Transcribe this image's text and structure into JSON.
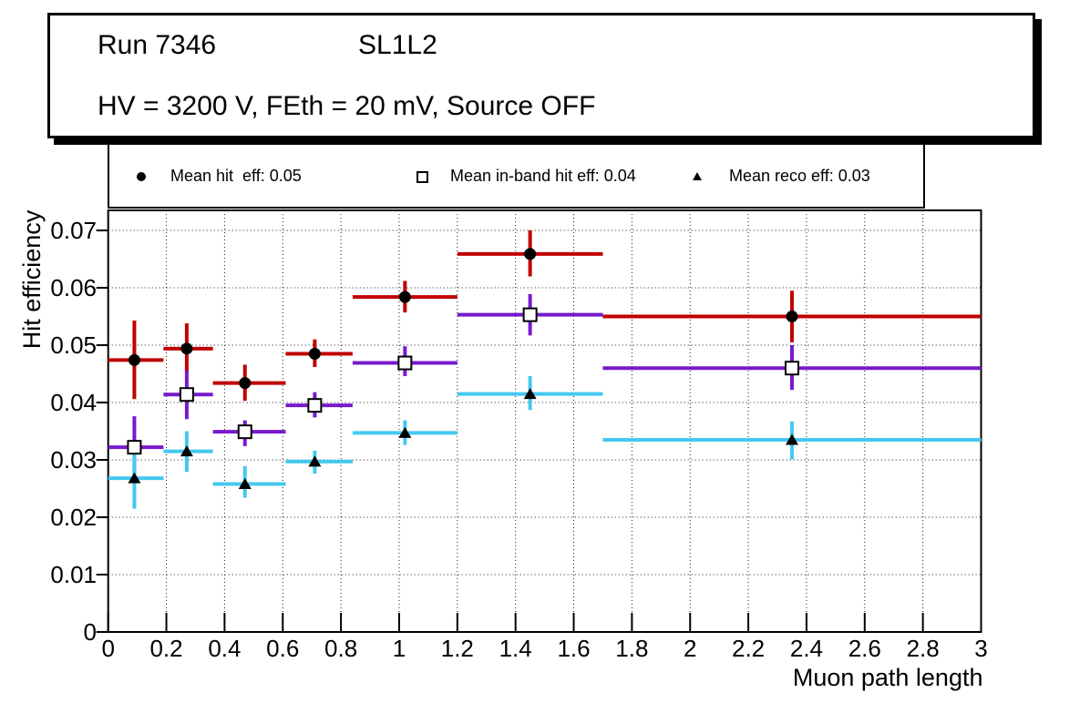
{
  "title": {
    "run": "Run 7346",
    "detector": "SL1L2",
    "conditions": "HV = 3200 V, FEth = 20 mV, Source OFF"
  },
  "colors": {
    "background": "#ffffff",
    "frame": "#000000",
    "grid": "#1a1a1a",
    "marker": "#000000",
    "hit_eff": "#c00000",
    "inband_eff": "#7719cc",
    "reco_eff": "#44c8f0"
  },
  "chart_data": {
    "type": "scatter",
    "subtype": "errorbar-xy",
    "xlabel": "Muon path length",
    "ylabel": "Hit efficiency",
    "xlim": [
      0,
      3
    ],
    "ylim": [
      0,
      0.0735
    ],
    "grid": "dotted-on-major-ticks",
    "legend_position": "top-strip",
    "x_ticks": {
      "values": [
        0,
        0.2,
        0.4,
        0.6,
        0.8,
        1,
        1.2,
        1.4,
        1.6,
        1.8,
        2,
        2.2,
        2.4,
        2.6,
        2.8,
        3
      ],
      "labels": [
        "0",
        "0.2",
        "0.4",
        "0.6",
        "0.8",
        "1",
        "1.2",
        "1.4",
        "1.6",
        "1.8",
        "2",
        "2.2",
        "2.4",
        "2.6",
        "2.8",
        "3"
      ]
    },
    "y_ticks": {
      "values": [
        0,
        0.01,
        0.02,
        0.03,
        0.04,
        0.05,
        0.06,
        0.07
      ],
      "labels": [
        "0",
        "0.01",
        "0.02",
        "0.03",
        "0.04",
        "0.05",
        "0.06",
        "0.07"
      ]
    },
    "bins": {
      "centers": [
        0.09,
        0.27,
        0.47,
        0.71,
        1.02,
        1.45,
        2.35
      ],
      "edges": [
        0.0,
        0.19,
        0.36,
        0.61,
        0.84,
        1.2,
        1.7,
        3.0
      ]
    },
    "series": [
      {
        "name": "Mean hit  eff: 0.05",
        "mean": 0.05,
        "marker": "filled-circle",
        "color_key": "hit_eff",
        "y": [
          0.0474,
          0.0494,
          0.0434,
          0.0485,
          0.0584,
          0.0659,
          0.055
        ],
        "y_low": [
          0.0406,
          0.0453,
          0.0403,
          0.0462,
          0.0557,
          0.062,
          0.0505
        ],
        "y_high": [
          0.0543,
          0.0538,
          0.0466,
          0.051,
          0.0612,
          0.07,
          0.0595
        ]
      },
      {
        "name": "Mean in-band hit eff: 0.04",
        "mean": 0.04,
        "marker": "open-square",
        "color_key": "inband_eff",
        "y": [
          0.0322,
          0.0414,
          0.0349,
          0.0395,
          0.0469,
          0.0553,
          0.046
        ],
        "y_low": [
          0.0265,
          0.0371,
          0.0324,
          0.0374,
          0.0446,
          0.0517,
          0.0422
        ],
        "y_high": [
          0.0376,
          0.0456,
          0.0369,
          0.0418,
          0.0498,
          0.0589,
          0.05
        ]
      },
      {
        "name": "Mean reco eff: 0.03",
        "mean": 0.03,
        "marker": "filled-triangle",
        "color_key": "reco_eff",
        "y": [
          0.0268,
          0.0315,
          0.0258,
          0.0297,
          0.0347,
          0.0415,
          0.0335
        ],
        "y_low": [
          0.0215,
          0.0279,
          0.0234,
          0.0276,
          0.0326,
          0.0387,
          0.0301
        ],
        "y_high": [
          0.0324,
          0.035,
          0.0289,
          0.0316,
          0.0369,
          0.0446,
          0.0367
        ]
      }
    ]
  }
}
